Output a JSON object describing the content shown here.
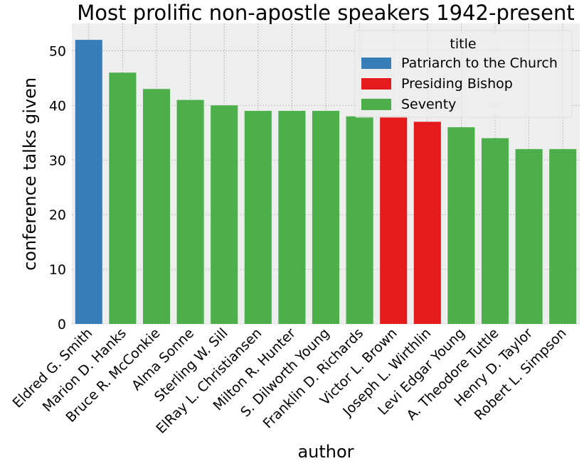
{
  "chart_data": {
    "type": "bar",
    "title": "Most prolific non-apostle speakers 1942-present",
    "xlabel": "author",
    "ylabel": "conference talks given",
    "ylim": [
      0,
      55
    ],
    "yticks": [
      0,
      10,
      20,
      30,
      40,
      50
    ],
    "grid": true,
    "legend": {
      "title": "title",
      "placement": "top-right",
      "entries": [
        {
          "label": "Patriarch to the Church",
          "color": "#377eb8"
        },
        {
          "label": "Presiding Bishop",
          "color": "#e41a1c"
        },
        {
          "label": "Seventy",
          "color": "#4daf4a"
        }
      ]
    },
    "categories": [
      "Eldred G. Smith",
      "Marion D. Hanks",
      "Bruce R. McConkie",
      "Alma Sonne",
      "Sterling W. Sill",
      "ElRay L. Christiansen",
      "Milton R. Hunter",
      "S. Dilworth Young",
      "Franklin D. Richards",
      "Victor L. Brown",
      "Joseph L. Wirthlin",
      "Levi Edgar Young",
      "A. Theodore Tuttle",
      "Henry D. Taylor",
      "Robert L. Simpson"
    ],
    "values": [
      52,
      46,
      43,
      41,
      40,
      39,
      39,
      39,
      38,
      38,
      37,
      36,
      34,
      32,
      32
    ],
    "groups": [
      "Patriarch to the Church",
      "Seventy",
      "Seventy",
      "Seventy",
      "Seventy",
      "Seventy",
      "Seventy",
      "Seventy",
      "Seventy",
      "Presiding Bishop",
      "Presiding Bishop",
      "Seventy",
      "Seventy",
      "Seventy",
      "Seventy"
    ]
  }
}
